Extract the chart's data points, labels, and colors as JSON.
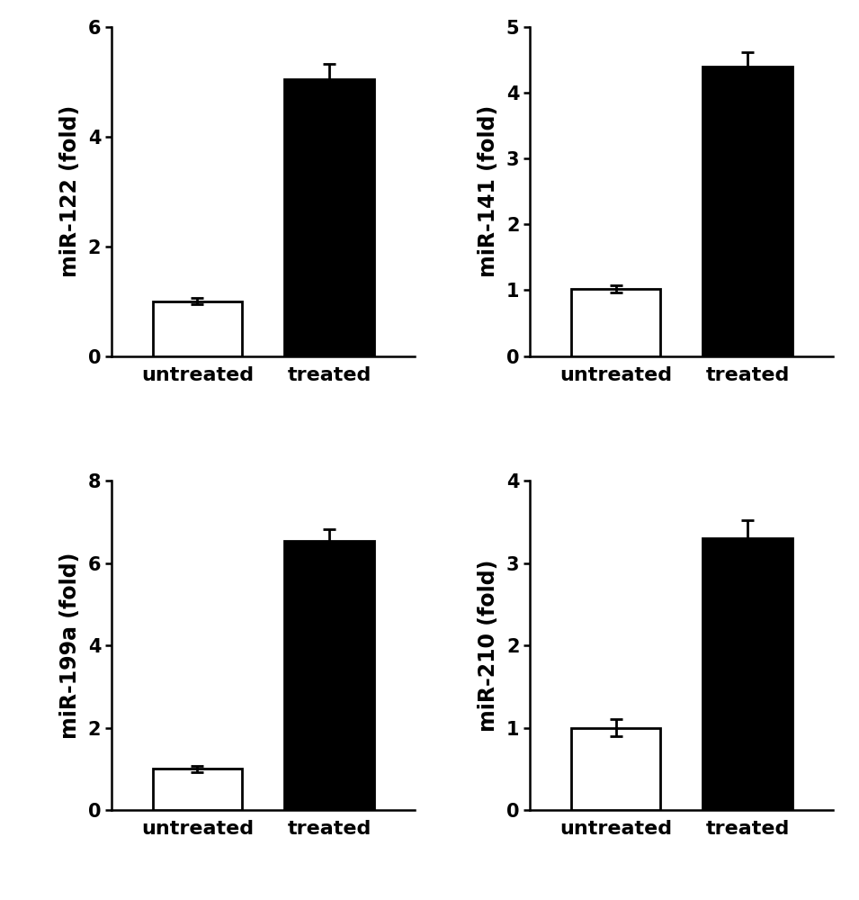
{
  "subplots": [
    {
      "ylabel": "miR-122 (fold)",
      "categories": [
        "untreated",
        "treated"
      ],
      "values": [
        1.0,
        5.05
      ],
      "errors": [
        0.06,
        0.28
      ],
      "colors": [
        "white",
        "black"
      ],
      "ylim": [
        0,
        6
      ],
      "yticks": [
        0,
        2,
        4,
        6
      ]
    },
    {
      "ylabel": "miR-141 (fold)",
      "categories": [
        "untreated",
        "treated"
      ],
      "values": [
        1.02,
        4.4
      ],
      "errors": [
        0.05,
        0.22
      ],
      "colors": [
        "white",
        "black"
      ],
      "ylim": [
        0,
        5
      ],
      "yticks": [
        0,
        1,
        2,
        3,
        4,
        5
      ]
    },
    {
      "ylabel": "miR-199a (fold)",
      "categories": [
        "untreated",
        "treated"
      ],
      "values": [
        1.0,
        6.55
      ],
      "errors": [
        0.08,
        0.28
      ],
      "colors": [
        "white",
        "black"
      ],
      "ylim": [
        0,
        8
      ],
      "yticks": [
        0,
        2,
        4,
        6,
        8
      ]
    },
    {
      "ylabel": "miR-210 (fold)",
      "categories": [
        "untreated",
        "treated"
      ],
      "values": [
        1.0,
        3.3
      ],
      "errors": [
        0.1,
        0.22
      ],
      "colors": [
        "white",
        "black"
      ],
      "ylim": [
        0,
        4
      ],
      "yticks": [
        0,
        1,
        2,
        3,
        4
      ]
    }
  ],
  "bar_width": 0.68,
  "edgecolor": "black",
  "linewidth": 2.0,
  "capsize": 5,
  "error_linewidth": 2.0,
  "tick_fontsize": 15,
  "label_fontsize": 17,
  "xlabel_fontsize": 16,
  "background_color": "white",
  "figure_size": [
    9.55,
    10.0
  ],
  "dpi": 100
}
